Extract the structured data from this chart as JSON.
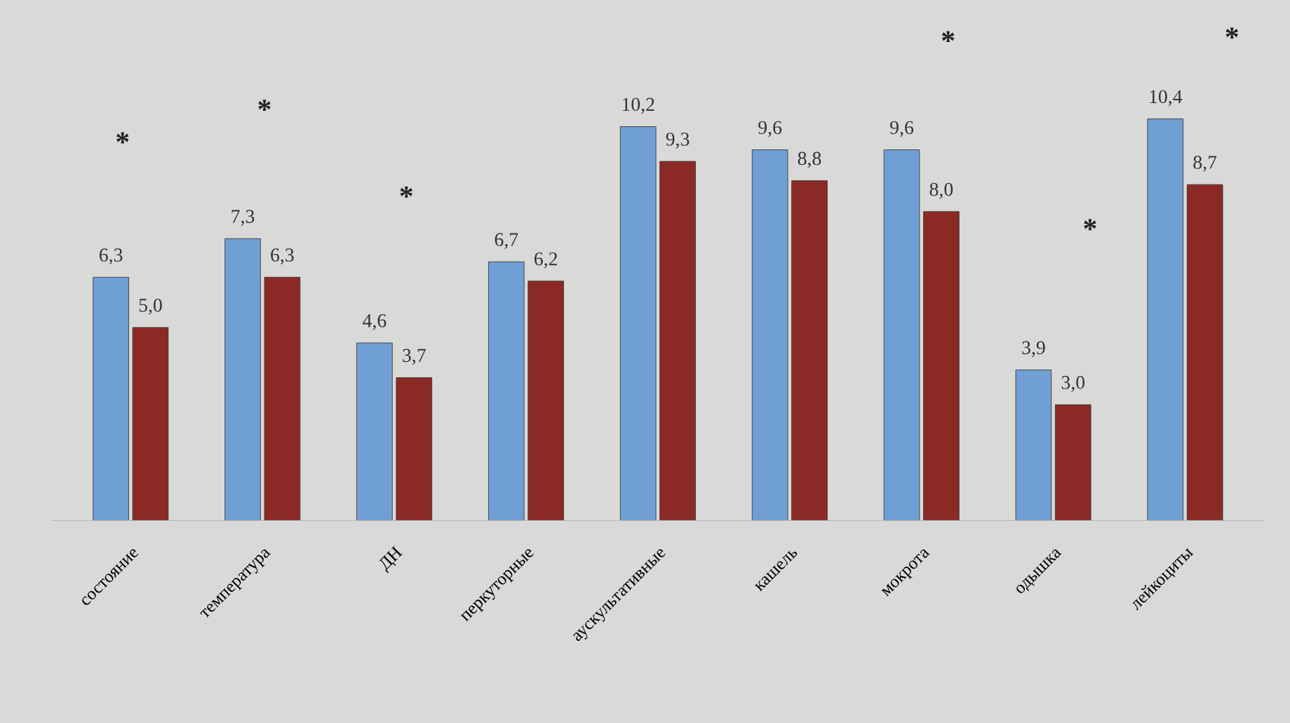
{
  "chart_data": {
    "type": "bar",
    "categories": [
      "состояние",
      "температура",
      "ДН",
      "перкуторные",
      "аускультативные",
      "кашель",
      "мокрота",
      "одышка",
      "лейкоциты"
    ],
    "series": [
      {
        "color": "#6f9fd4",
        "values": [
          6.3,
          7.3,
          4.6,
          6.7,
          10.2,
          9.6,
          9.6,
          3.9,
          10.4
        ],
        "value_labels": [
          "6,3",
          "7,3",
          "4,6",
          "6,7",
          "10,2",
          "9,6",
          "9,6",
          "3,9",
          "10,4"
        ]
      },
      {
        "color": "#8b2a25",
        "values": [
          5.0,
          6.3,
          3.7,
          6.2,
          9.3,
          8.8,
          8.0,
          3.0,
          8.7
        ],
        "value_labels": [
          "5,0",
          "6,3",
          "3,7",
          "6,2",
          "9,3",
          "8,8",
          "8,0",
          "3,0",
          "8,7"
        ]
      }
    ],
    "annotations": [
      "*",
      "*",
      "*",
      "*",
      "*",
      "*"
    ],
    "grid": false,
    "legend": false,
    "tick_labels": "x"
  }
}
